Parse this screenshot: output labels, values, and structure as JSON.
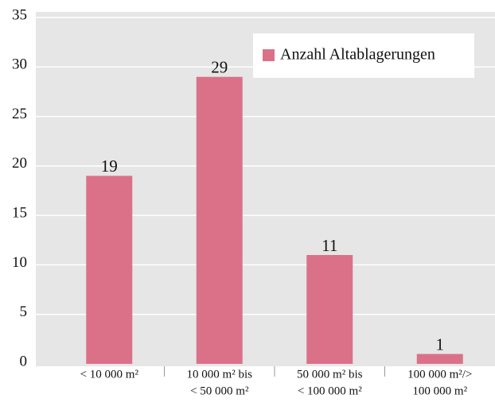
{
  "chart_data": {
    "type": "bar",
    "categories": [
      [
        "< 10 000 m²"
      ],
      [
        "10 000 m² bis",
        "< 50 000 m²"
      ],
      [
        "50 000 m² bis",
        "< 100 000 m²"
      ],
      [
        "100 000 m²/>",
        "100 000 m²"
      ]
    ],
    "series": [
      {
        "name": "Anzahl Altablagerungen",
        "color": "#db7189",
        "values": [
          19,
          29,
          11,
          1
        ]
      }
    ],
    "ylim": [
      0,
      35
    ],
    "yticks": [
      0,
      5,
      10,
      15,
      20,
      25,
      30,
      35
    ],
    "grid": true,
    "legend": "top-right"
  }
}
